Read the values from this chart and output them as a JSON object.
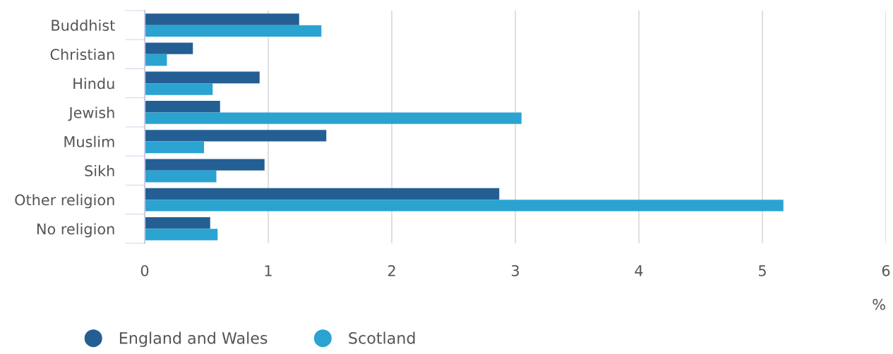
{
  "chart_data": {
    "type": "bar",
    "orientation": "horizontal",
    "xlabel": "%",
    "categories": [
      "Buddhist",
      "Christian",
      "Hindu",
      "Jewish",
      "Muslim",
      "Sikh",
      "Other religion",
      "No religion"
    ],
    "series": [
      {
        "name": "England and Wales",
        "color": "#245f94",
        "values": [
          1.25,
          0.39,
          0.93,
          0.61,
          1.47,
          0.97,
          2.87,
          0.53
        ]
      },
      {
        "name": "Scotland",
        "color": "#2ba3d1",
        "values": [
          1.43,
          0.18,
          0.55,
          3.05,
          0.48,
          0.58,
          5.17,
          0.59
        ]
      }
    ],
    "xlim": [
      0,
      6
    ],
    "xticks": [
      0,
      1,
      2,
      3,
      4,
      5,
      6
    ],
    "grid": "x",
    "legend": "bottom left"
  }
}
